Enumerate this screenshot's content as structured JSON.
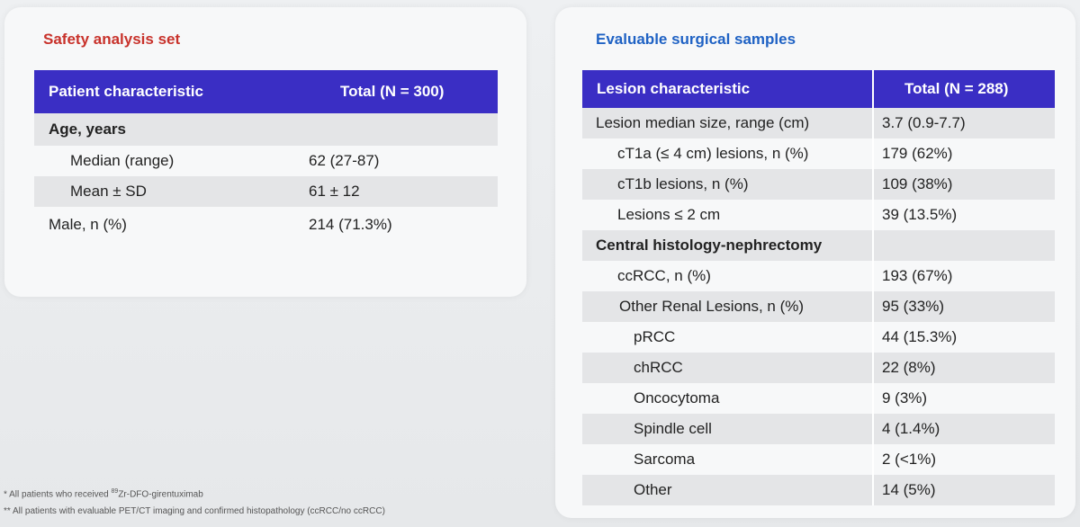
{
  "left": {
    "title": "Safety analysis set",
    "header": [
      "Patient characteristic",
      "Total (N = 300)"
    ],
    "rows": [
      [
        "Age, years",
        null
      ],
      [
        "Median (range)",
        "62 (27-87)"
      ],
      [
        "Mean ± SD",
        "61 ± 12"
      ],
      [
        "Male, n (%)",
        "214 (71.3%)"
      ]
    ]
  },
  "right": {
    "title": "Evaluable surgical samples",
    "header": [
      "Lesion characteristic",
      "Total (N = 288)"
    ],
    "rows": [
      [
        "Lesion median size, range (cm)",
        "3.7 (0.9-7.7)"
      ],
      [
        "cT1a (≤ 4 cm) lesions, n (%)",
        "179 (62%)"
      ],
      [
        "cT1b lesions, n (%)",
        "109 (38%)"
      ],
      [
        "Lesions ≤ 2 cm",
        "39 (13.5%)"
      ],
      [
        "Central histology-nephrectomy",
        null
      ],
      [
        "ccRCC, n (%)",
        "193 (67%)"
      ],
      [
        "Other Renal Lesions, n (%)",
        "95 (33%)"
      ],
      [
        "pRCC",
        "44 (15.3%)"
      ],
      [
        "chRCC",
        "22 (8%)"
      ],
      [
        "Oncocytoma",
        "9 (3%)"
      ],
      [
        "Spindle cell",
        "4 (1.4%)"
      ],
      [
        "Sarcoma",
        "2 (<1%)"
      ],
      [
        "Other",
        "14 (5%)"
      ]
    ]
  },
  "footnotes": [
    {
      "prefix": "* All patients who received ",
      "sup": "89",
      "suffix": "Zr-DFO-girentuximab"
    },
    {
      "prefix": "** All patients with evaluable PET/CT imaging and confirmed histopathology (ccRCC/no ccRCC)"
    }
  ]
}
